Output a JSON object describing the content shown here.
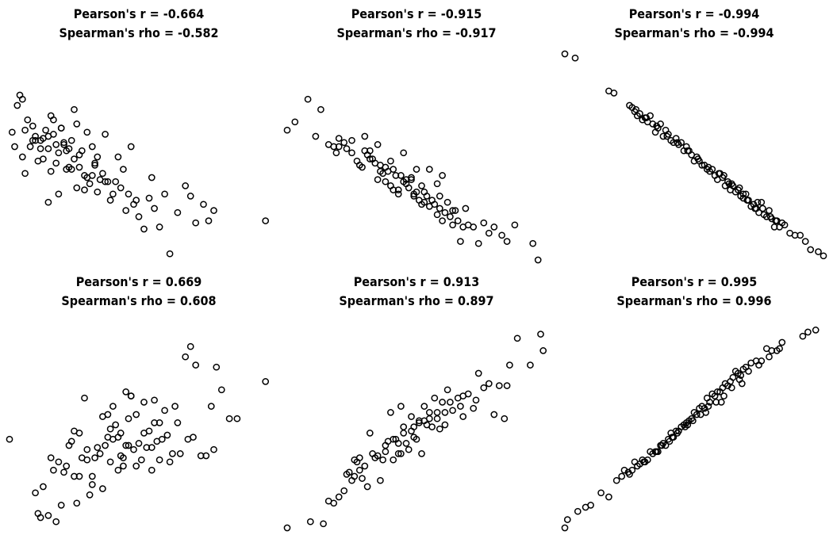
{
  "chart_data": [
    {
      "type": "scatter",
      "title": "Pearson's r =  -0.664",
      "subtitle": "Spearman's rho =  -0.582",
      "xlim": [
        0,
        10
      ],
      "ylim": [
        0,
        10
      ],
      "x": [
        0.1,
        0.3,
        0.2,
        0.4,
        0.5,
        0.5,
        0.7,
        0.6,
        0.9,
        1,
        0.8,
        1.2,
        1.1,
        1.3,
        1.4,
        1.5,
        1.6,
        1.5,
        1.7,
        1.8,
        1.9,
        2,
        2.1,
        1.9,
        2.2,
        2.3,
        2.4,
        2.5,
        2.6,
        2.7,
        2.6,
        2.8,
        2.9,
        3,
        3.1,
        3.2,
        3.3,
        3.4,
        3.5,
        3.6,
        3.7,
        3.8,
        3.9,
        4,
        4.2,
        4.3,
        4.4,
        4.5,
        4.6,
        4.7,
        4.8,
        5,
        5.2,
        5.4,
        5.6,
        5.8,
        6,
        6.2,
        6.5,
        6.8,
        7,
        7.2,
        7.5,
        7.7,
        7.9,
        1.5,
        2,
        2.5,
        3,
        1,
        1.3,
        1.7,
        2.3,
        2.7,
        3.3,
        0.9,
        1.6,
        2.1,
        2.4,
        3.4,
        4.1,
        0.6,
        1.8,
        2.9,
        3.7,
        4.9,
        5.5,
        1.2,
        2.2,
        3.2,
        9.9
      ],
      "y": [
        6.2,
        7.5,
        5.5,
        8,
        7.8,
        5,
        6.8,
        4.2,
        6.5,
        6,
        5.5,
        5.8,
        4.8,
        5.9,
        6.3,
        5.4,
        7,
        2.8,
        6.1,
        4.7,
        5.2,
        6.4,
        5.6,
        3.2,
        5.3,
        4.5,
        5.8,
        4.9,
        6.6,
        5.1,
        3.5,
        5.3,
        4.1,
        4,
        3.7,
        5.5,
        4.6,
        3.3,
        3.9,
        4.2,
        6.1,
        3.8,
        2.9,
        3.2,
        5,
        3.5,
        4.4,
        2.4,
        3.2,
        5.5,
        2.7,
        2.1,
        1.5,
        3,
        2.5,
        1.6,
        3.2,
        0.3,
        2.3,
        3.6,
        3.1,
        1.8,
        2.7,
        1.9,
        2.4,
        6,
        6.4,
        7.3,
        6.2,
        5.8,
        4.9,
        6.8,
        5.4,
        4.5,
        4.7,
        5.8,
        4.3,
        5.7,
        4.4,
        5,
        3.8,
        6.3,
        5.6,
        3.4,
        3.8,
        2.9,
        4,
        5.4,
        4.4,
        4.1,
        1.9
      ]
    },
    {
      "type": "scatter",
      "title": "Pearson's r =  -0.915",
      "subtitle": "Spearman's rho =  -0.917",
      "xlim": [
        0,
        10
      ],
      "ylim": [
        0,
        10
      ],
      "x": [
        0,
        0.3,
        0.8,
        1.1,
        1.3,
        1.6,
        1.8,
        1.9,
        2,
        2.2,
        2.5,
        2.7,
        2.9,
        3,
        3.1,
        3.2,
        3.3,
        3.4,
        3.5,
        3.6,
        3.7,
        3.8,
        3.9,
        4,
        4.1,
        4.2,
        4.3,
        4.4,
        4.5,
        4.6,
        4.7,
        4.8,
        4.9,
        5,
        5.1,
        5.2,
        5.3,
        5.4,
        5.5,
        5.6,
        5.7,
        5.8,
        5.9,
        6,
        6.1,
        6.2,
        6.3,
        6.4,
        6.5,
        6.6,
        6.7,
        6.8,
        6.9,
        7,
        7.2,
        7.4,
        7.6,
        7.8,
        8,
        8.3,
        8.5,
        8.8,
        9.5,
        9.7,
        2,
        2.5,
        3,
        3.5,
        4,
        4.5,
        5,
        5.5,
        6,
        3.2,
        3.8,
        4.3,
        4.8,
        5.3,
        5.8,
        2.8,
        3.6,
        4.6,
        5.2,
        6.4,
        2.3,
        4.1,
        4.9,
        5.9
      ],
      "y": [
        6.3,
        6.7,
        7.8,
        6,
        7.3,
        5.6,
        5.5,
        5.2,
        5.9,
        5.7,
        5.2,
        4.8,
        4.5,
        6,
        5.1,
        5.3,
        4.9,
        4.7,
        3.9,
        4.6,
        4.2,
        4.5,
        4.3,
        3.6,
        4.4,
        4.1,
        3.2,
        4.1,
        3.8,
        3.9,
        3.5,
        3.9,
        3.1,
        3.3,
        2.9,
        3.6,
        2.8,
        3.1,
        2.6,
        2.9,
        2.7,
        2.2,
        2.5,
        1.9,
        2.3,
        2.8,
        2.1,
        1.7,
        2.4,
        1.9,
        0.9,
        1.6,
        2.5,
        1.7,
        1.6,
        0.8,
        1.8,
        1.3,
        1.6,
        1.2,
        0.9,
        1.7,
        0.8,
        0,
        5.5,
        5.8,
        5.3,
        5.6,
        4.8,
        5.2,
        4.4,
        4.4,
        4.1,
        4.9,
        3.8,
        3.4,
        4,
        3.3,
        3.7,
        4.6,
        4.3,
        3.7,
        2.7,
        2.4,
        5.4,
        3.4,
        3.2,
        3.1
      ]
    },
    {
      "type": "scatter",
      "title": "Pearson's r =  -0.994",
      "subtitle": "Spearman's rho =  -0.994",
      "xlim": [
        0,
        10
      ],
      "ylim": [
        0,
        10
      ],
      "x": [
        0,
        0.4,
        1.7,
        1.9,
        2.5,
        2.7,
        2.9,
        3,
        3.2,
        3.3,
        3.5,
        3.7,
        3.8,
        3.9,
        4.1,
        4.3,
        4.4,
        4.6,
        4.7,
        4.9,
        5,
        5.1,
        5.2,
        5.3,
        5.5,
        5.6,
        5.7,
        5.8,
        5.9,
        6,
        6.1,
        6.2,
        6.3,
        6.4,
        6.5,
        6.6,
        6.7,
        6.8,
        6.9,
        7,
        7.1,
        7.2,
        7.3,
        7.4,
        7.5,
        7.6,
        7.7,
        7.8,
        7.9,
        8,
        8.1,
        8.2,
        8.3,
        8.5,
        8.7,
        8.9,
        9.1,
        9.3,
        9.5,
        9.8,
        10,
        2.6,
        2.8,
        3.1,
        3.4,
        3.6,
        4,
        4.2,
        4.5,
        4.8,
        5.4,
        6.15,
        6.45,
        6.75,
        7.05,
        7.35,
        7.65,
        7.95,
        8.15,
        8.4,
        2.75,
        3.15,
        3.55,
        3.95,
        4.35,
        4.75,
        5.15,
        5.55,
        5.95,
        6.35,
        6.9,
        7.45
      ],
      "y": [
        10,
        9.8,
        8.2,
        8.1,
        7.5,
        7.2,
        7.1,
        6.8,
        6.7,
        7.0,
        6.2,
        6.6,
        6,
        6.3,
        5.8,
        5.9,
        5.6,
        5.3,
        5.5,
        5.1,
        4.8,
        5,
        4.8,
        4.6,
        4.4,
        4.3,
        4.4,
        4.1,
        3.9,
        4.2,
        4,
        3.6,
        3.8,
        3.4,
        3.6,
        3.3,
        3.4,
        3.1,
        3,
        3.2,
        2.9,
        2.6,
        2.7,
        2.5,
        2.3,
        2.8,
        2.2,
        2.1,
        2.4,
        2,
        1.6,
        1.9,
        1.6,
        1.7,
        1.3,
        1.2,
        1.2,
        0.9,
        0.5,
        0.4,
        0.2,
        7.4,
        7,
        6.9,
        6.6,
        6.4,
        6.1,
        5.7,
        5.7,
        5.3,
        4.6,
        4.1,
        3.7,
        3.5,
        2.9,
        2.5,
        2.5,
        2.1,
        1.9,
        1.8,
        7.3,
        6.9,
        6.5,
        6,
        5.7,
        5.3,
        4.9,
        4.5,
        4.2,
        3.7,
        3.2,
        2.8
      ]
    },
    {
      "type": "scatter",
      "title": "Pearson's r =  0.669",
      "subtitle": "Spearman's rho =  0.608",
      "xlim": [
        0,
        10
      ],
      "ylim": [
        0,
        10
      ],
      "x": [
        0,
        1,
        1.1,
        1.2,
        1.3,
        1.5,
        1.7,
        1.8,
        1.9,
        2,
        2.1,
        2.2,
        2.3,
        2.4,
        2.5,
        2.6,
        2.7,
        2.8,
        2.9,
        3,
        3.1,
        3.2,
        3.3,
        3.4,
        3.5,
        3.6,
        3.7,
        3.8,
        3.9,
        4,
        4.1,
        4.2,
        4.3,
        4.4,
        4.5,
        4.6,
        4.7,
        4.8,
        4.9,
        5,
        5.1,
        5.2,
        5.3,
        5.4,
        5.5,
        5.6,
        5.7,
        5.8,
        5.9,
        6,
        6.2,
        6.4,
        6.6,
        6.8,
        7,
        7.2,
        7.4,
        7.6,
        7.8,
        8,
        8.2,
        8.5,
        8.8,
        9.9,
        4.5,
        4.2,
        4,
        3.9,
        3.8,
        4.4,
        4.9,
        5.5,
        6.1,
        5.2,
        4.6,
        4.7,
        5.8,
        6.3,
        3.6,
        3.2,
        2.7,
        6.5,
        7.1,
        5.6,
        4.3,
        6.9,
        7.9,
        2.5,
        1.6,
        3
      ],
      "y": [
        4.3,
        1.7,
        0.7,
        0.5,
        2.0,
        0.6,
        2.8,
        0.3,
        3.2,
        1.1,
        2.7,
        3,
        4,
        4.2,
        2.5,
        1.2,
        4.6,
        3.4,
        6.3,
        3.8,
        1.6,
        2.5,
        3.4,
        3.9,
        3.6,
        1.9,
        4,
        4.4,
        3.2,
        5.9,
        5,
        4.4,
        3.5,
        3,
        6.6,
        5.3,
        6.4,
        3.8,
        5.5,
        4.1,
        3.3,
        6.1,
        3.9,
        4.7,
        2.8,
        5.1,
        4.2,
        5.1,
        4.3,
        5.7,
        3.2,
        5.9,
        3.6,
        8.3,
        8.8,
        7.9,
        3.5,
        3.5,
        5.9,
        7.8,
        6.7,
        5.3,
        5.3,
        7.1,
        4.0,
        2.8,
        4.3,
        4.8,
        5.5,
        3.4,
        3.0,
        3.9,
        4.5,
        4.6,
        4.0,
        6.4,
        3.3,
        3.6,
        5.4,
        2.1,
        2.5,
        5.1,
        4.4,
        6.2,
        4.6,
        4.3,
        3.8,
        4.7,
        3.4,
        3.3
      ]
    },
    {
      "type": "scatter",
      "title": "Pearson's r =  0.913",
      "subtitle": "Spearman's rho =  0.897",
      "xlim": [
        0,
        10
      ],
      "ylim": [
        0,
        10
      ],
      "x": [
        0,
        0.9,
        1.4,
        1.6,
        1.8,
        2,
        2.2,
        2.4,
        2.5,
        2.6,
        2.7,
        2.8,
        2.9,
        3,
        3.2,
        3.4,
        3.6,
        3.8,
        3.9,
        4,
        4.1,
        4.2,
        4.3,
        4.4,
        4.5,
        4.6,
        4.7,
        4.8,
        4.9,
        5,
        5.1,
        5.2,
        5.3,
        5.4,
        5.5,
        5.6,
        5.7,
        5.8,
        5.9,
        6,
        6.1,
        6.2,
        6.4,
        6.6,
        6.8,
        7,
        7.2,
        7.4,
        7.6,
        7.8,
        8,
        8.2,
        8.4,
        8.6,
        8.9,
        9.4,
        9.8,
        9.9,
        2.3,
        2.8,
        3.3,
        3.8,
        4.3,
        4.8,
        5.3,
        5.8,
        6.3,
        6.8,
        3.5,
        4.5,
        5.5,
        2.6,
        3.7,
        4.9,
        6.1,
        7.3,
        3.1,
        4.1,
        5.1,
        6.7,
        8.5,
        4.4
      ],
      "y": [
        0,
        0.3,
        0.2,
        1.3,
        1.2,
        1.5,
        1.8,
        2.7,
        2.3,
        3.3,
        3.2,
        2.8,
        2.4,
        3.0,
        4.6,
        3.4,
        2.3,
        3.7,
        4.2,
        5.6,
        3.3,
        4.3,
        3.6,
        3.6,
        4.9,
        4.1,
        3.8,
        5.4,
        4.9,
        4.3,
        5.1,
        3.6,
        5.9,
        5,
        5.6,
        4.9,
        6.3,
        5.3,
        4.8,
        6.1,
        5.6,
        6.7,
        5.7,
        6.3,
        5.4,
        6.5,
        5.8,
        7.5,
        6.8,
        7,
        5.5,
        6.9,
        5.3,
        7.9,
        9.2,
        7.9,
        9.4,
        8.6,
        2.6,
        3.4,
        3.6,
        4.0,
        4.1,
        4.7,
        5.2,
        5.6,
        6.1,
        6.4,
        3.5,
        4.6,
        5.3,
        2.5,
        3.3,
        4.4,
        5.0,
        6.2,
        2.0,
        4.3,
        5.2,
        5.9,
        6.9,
        5.9
      ]
    },
    {
      "type": "scatter",
      "title": "Pearson's r =  0.995",
      "subtitle": "Spearman's rho =  0.996",
      "xlim": [
        0,
        10
      ],
      "ylim": [
        0,
        10
      ],
      "x": [
        0,
        0.1,
        0.5,
        0.8,
        1,
        1.4,
        1.7,
        2,
        2.2,
        2.3,
        2.5,
        2.7,
        2.9,
        3,
        3.2,
        3.3,
        3.5,
        3.6,
        3.7,
        3.8,
        3.9,
        4,
        4.1,
        4.2,
        4.3,
        4.4,
        4.5,
        4.6,
        4.7,
        4.8,
        4.9,
        5,
        5.1,
        5.2,
        5.3,
        5.4,
        5.5,
        5.6,
        5.7,
        5.8,
        5.9,
        6,
        6.1,
        6.2,
        6.3,
        6.4,
        6.5,
        6.6,
        6.7,
        6.8,
        6.9,
        7,
        7.2,
        7.4,
        7.6,
        7.8,
        8,
        8.2,
        8.4,
        9.2,
        9.4,
        9.7,
        2.6,
        2.8,
        3.1,
        3.4,
        3.75,
        4.05,
        4.35,
        4.65,
        4.95,
        5.25,
        5.55,
        5.85,
        6.15,
        6.45,
        6.75,
        7.1,
        7.5,
        7.9,
        8.3,
        2.45,
        3.05,
        3.55,
        4.15,
        4.75,
        5.45,
        6.05,
        6.85
      ],
      "y": [
        0,
        0.4,
        0.8,
        1,
        1.1,
        1.7,
        1.5,
        2.3,
        2.5,
        2.8,
        2.6,
        3.2,
        3.1,
        3.3,
        3.3,
        3.7,
        3.7,
        3.7,
        4,
        4.1,
        4,
        4.3,
        4.6,
        4.4,
        4.7,
        4.7,
        4.9,
        5,
        5.1,
        5.2,
        5.3,
        5.6,
        5.5,
        5.8,
        5.9,
        5.8,
        6.3,
        6.1,
        6.5,
        6.4,
        6.6,
        6.6,
        6.8,
        7,
        6.9,
        7.1,
        7.3,
        7.6,
        7.5,
        7.4,
        7.7,
        7.8,
        8,
        8.1,
        8.1,
        8.7,
        8.6,
        8.6,
        9.0,
        9.3,
        9.5,
        9.6,
        2.8,
        3.0,
        3.2,
        3.6,
        4.0,
        4.2,
        4.6,
        4.9,
        5.2,
        5.5,
        5.9,
        6.1,
        6.4,
        6.8,
        7.2,
        7.6,
        7.9,
        8.3,
        8.7,
        2.7,
        3.2,
        3.7,
        4.4,
        5.0,
        5.6,
        6.1,
        7.0
      ]
    }
  ]
}
